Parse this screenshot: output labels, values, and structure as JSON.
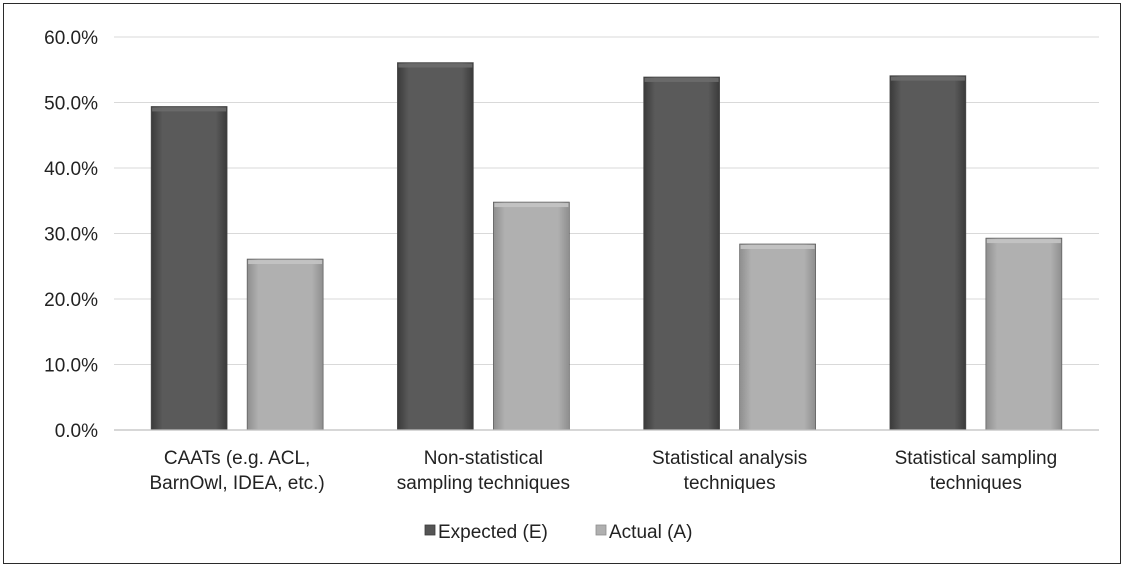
{
  "chart_data": {
    "type": "bar",
    "categories": [
      [
        "CAATs (e.g. ACL,",
        "BarnOwl, IDEA, etc.)"
      ],
      [
        "Non-statistical",
        "sampling techniques"
      ],
      [
        "Statistical analysis",
        "techniques"
      ],
      [
        "Statistical sampling",
        "techniques"
      ]
    ],
    "series": [
      {
        "name": "Expected (E)",
        "values": [
          49.4,
          56.1,
          53.9,
          54.1
        ],
        "color": "#555555"
      },
      {
        "name": "Actual (A)",
        "values": [
          26.1,
          34.8,
          28.4,
          29.3
        ],
        "color": "#ababab"
      }
    ],
    "ylim": [
      0,
      60
    ],
    "yticks": [
      "0.0%",
      "10.0%",
      "20.0%",
      "30.0%",
      "40.0%",
      "50.0%",
      "60.0%"
    ],
    "grid": true,
    "legend_position": "bottom",
    "title": "",
    "xlabel": "",
    "ylabel": ""
  }
}
